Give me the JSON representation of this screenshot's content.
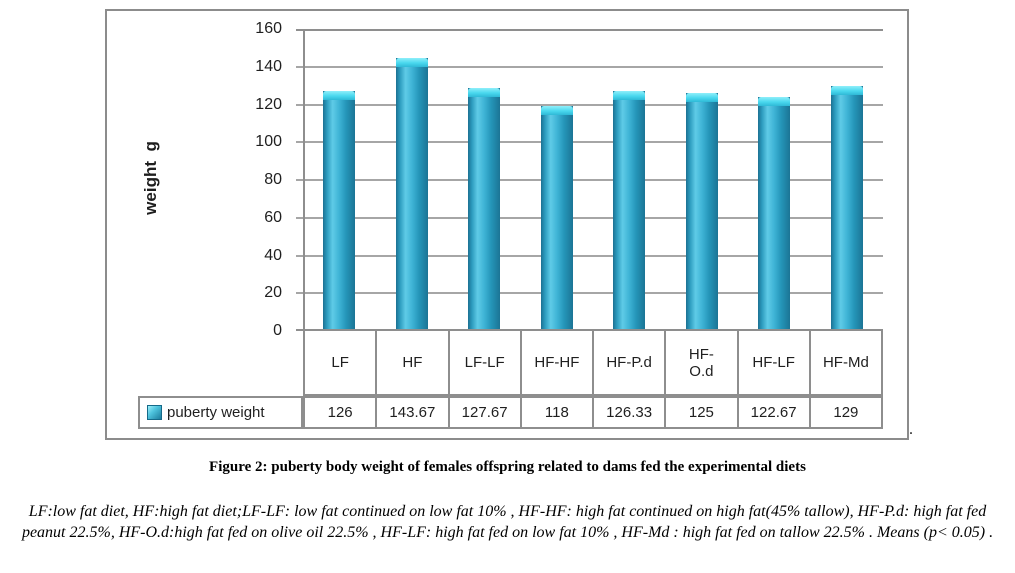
{
  "figure": {
    "caption": "Figure 2: puberty body weight of females offspring related to dams fed the experimental diets",
    "footnote": "LF:low fat diet, HF:high fat diet;LF-LF: low fat continued on low fat 10% , HF-HF: high fat continued on high fat(45% tallow), HF-P.d: high fat fed peanut 22.5%, HF-O.d:high fat fed on olive oil 22.5% , HF-LF: high fat fed on low fat 10% , HF-Md : high fat fed on tallow 22.5% . Means (p< 0.05) .",
    "trailing_period": "."
  },
  "chart_data": {
    "type": "bar",
    "title": "",
    "xlabel": "",
    "ylabel": "weight  g",
    "categories": [
      "LF",
      "HF",
      "LF-LF",
      "HF-HF",
      "HF-P.d",
      "HF-O.d",
      "HF-LF",
      "HF-Md"
    ],
    "category_display": [
      "LF",
      "HF",
      "LF-LF",
      "HF-HF",
      "HF-P.d",
      "HF-\nO.d",
      "HF-LF",
      "HF-Md"
    ],
    "series": [
      {
        "name": "puberty weight",
        "values": [
          126,
          143.67,
          127.67,
          118,
          126.33,
          125,
          122.67,
          129
        ],
        "color": "#2DA4C8"
      }
    ],
    "value_labels": [
      "126",
      "143.67",
      "127.67",
      "118",
      "126.33",
      "125",
      "122.67",
      "129"
    ],
    "ylim": [
      0,
      160
    ],
    "ytick_step": 20,
    "ytick_labels": [
      "160",
      "140",
      "120",
      "100",
      "80",
      "60",
      "40",
      "20",
      "0"
    ],
    "grid": true,
    "legend_position": "bottom-left-table",
    "legend": [
      {
        "label": "puberty weight",
        "color": "#2DA4C8"
      }
    ]
  },
  "colors": {
    "bar": "#2DA4C8",
    "bar_dark": "#1E7697",
    "bar_light": "#66D2EC",
    "cap_light": "#6FE5F5",
    "grid": "#A6A6A6",
    "frame": "#8C8C8C",
    "text": "#1F1F1F"
  }
}
